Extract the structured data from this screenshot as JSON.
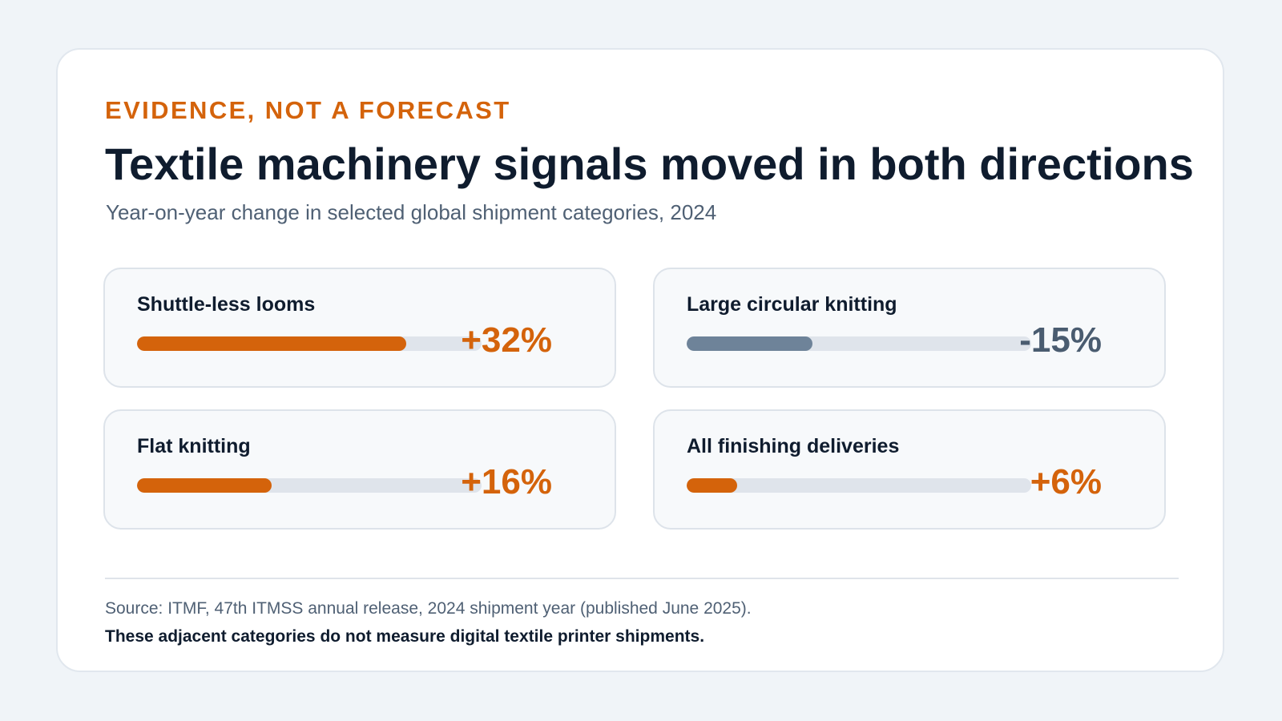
{
  "header": {
    "eyebrow": "EVIDENCE, NOT A FORECAST",
    "title": "Textile machinery signals moved in both directions",
    "subtitle": "Year-on-year change in selected global shipment categories, 2024"
  },
  "colors": {
    "accent": "#d4630b",
    "negative_bar": "#6e8399",
    "negative_text": "#4a5c70",
    "track": "#dfe4eb"
  },
  "chart_data": {
    "type": "bar",
    "categories": [
      "Shuttle-less looms",
      "Large circular knitting",
      "Flat knitting",
      "All finishing deliveries"
    ],
    "values": [
      32,
      -15,
      16,
      6
    ],
    "value_labels": [
      "+32%",
      "-15%",
      "+16%",
      "+6%"
    ],
    "unit": "%",
    "title": "Textile machinery signals moved in both directions",
    "subtitle": "Year-on-year change in selected global shipment categories, 2024"
  },
  "footer": {
    "source": "Source: ITMF, 47th ITMSS annual release, 2024 shipment year (published June 2025).",
    "note": "These adjacent categories do not measure digital textile printer shipments."
  }
}
